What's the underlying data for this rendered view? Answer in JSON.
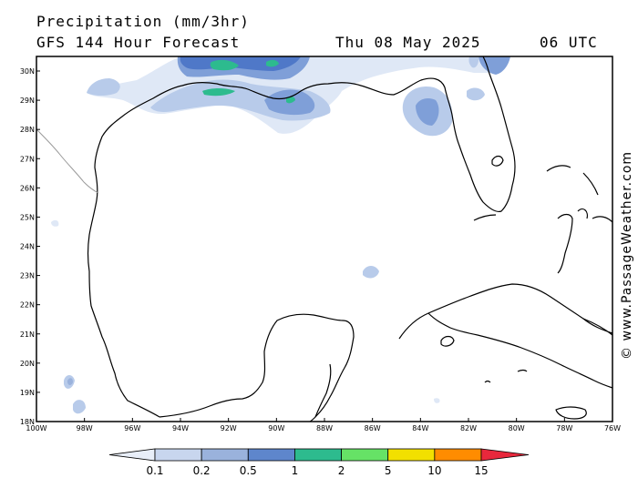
{
  "header": {
    "title": "Precipitation (mm/3hr)",
    "subtitle": "GFS 144 Hour Forecast",
    "date": "Thu 08 May 2025",
    "time": "06 UTC"
  },
  "credit": "© www.PassageWeather.com",
  "map": {
    "region": "Gulf of Mexico",
    "lat_range": [
      18,
      30.5
    ],
    "lon_range": [
      -100,
      -76
    ],
    "lat_labels": [
      "30N",
      "29N",
      "28N",
      "27N",
      "26N",
      "25N",
      "24N",
      "23N",
      "22N",
      "21N",
      "20N",
      "19N",
      "18N"
    ],
    "lon_labels": [
      "100W",
      "98W",
      "96W",
      "94W",
      "92W",
      "90W",
      "88W",
      "86W",
      "84W",
      "82W",
      "80W",
      "78W",
      "76W"
    ]
  },
  "colorbar": {
    "labels": [
      "0.1",
      "0.2",
      "0.5",
      "1",
      "2",
      "5",
      "10",
      "15"
    ],
    "colors": [
      "#e8eef8",
      "#c8d6ee",
      "#9ab2dc",
      "#5e86cc",
      "#2dbb8e",
      "#66e266",
      "#f2e000",
      "#ff8c00",
      "#e8283c"
    ]
  },
  "precip_colors": {
    "lightest": "#dfe8f6",
    "light": "#b8cbea",
    "medium": "#7f9fd8",
    "blue": "#4f78c8",
    "teal": "#2dbb8e",
    "green": "#54d66a"
  }
}
